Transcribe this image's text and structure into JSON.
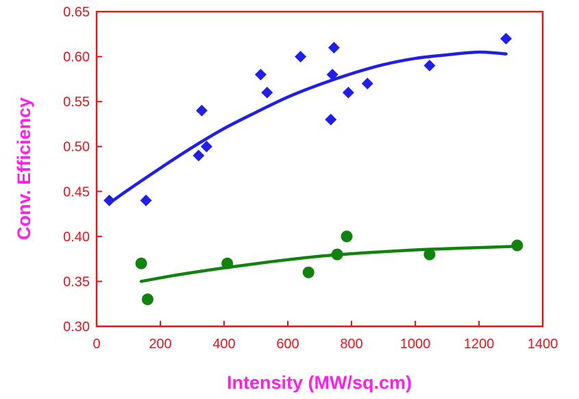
{
  "chart_data": {
    "type": "scatter",
    "title": "",
    "xlabel": "Intensity (MW/sq.cm)",
    "ylabel": "Conv. Efficiency",
    "xlim": [
      0,
      1400
    ],
    "ylim": [
      0.3,
      0.65
    ],
    "x_ticks": [
      "0",
      "200",
      "400",
      "600",
      "800",
      "1000",
      "1200",
      "1400"
    ],
    "y_ticks": [
      "0.30",
      "0.35",
      "0.40",
      "0.45",
      "0.50",
      "0.55",
      "0.60",
      "0.65"
    ],
    "grid": false,
    "legend": "none",
    "colors": {
      "axis": "#e8141c",
      "label": "#ff20e8",
      "series_a": "#1f1fe6",
      "series_b": "#12820f"
    },
    "series": [
      {
        "marker": "diamond",
        "color": "#1f1fe6",
        "points": [
          [
            40,
            0.44
          ],
          [
            155,
            0.44
          ],
          [
            320,
            0.49
          ],
          [
            330,
            0.54
          ],
          [
            345,
            0.5
          ],
          [
            515,
            0.58
          ],
          [
            535,
            0.56
          ],
          [
            640,
            0.6
          ],
          [
            735,
            0.53
          ],
          [
            740,
            0.58
          ],
          [
            745,
            0.61
          ],
          [
            790,
            0.56
          ],
          [
            850,
            0.57
          ],
          [
            1045,
            0.59
          ],
          [
            1285,
            0.62
          ]
        ],
        "trendline": {
          "x": [
            40,
            100,
            200,
            300,
            400,
            500,
            600,
            700,
            800,
            900,
            1000,
            1100,
            1200,
            1285
          ],
          "y": [
            0.437,
            0.452,
            0.476,
            0.499,
            0.52,
            0.538,
            0.555,
            0.569,
            0.581,
            0.591,
            0.598,
            0.602,
            0.605,
            0.603
          ]
        }
      },
      {
        "marker": "circle",
        "color": "#12820f",
        "points": [
          [
            140,
            0.37
          ],
          [
            160,
            0.33
          ],
          [
            410,
            0.37
          ],
          [
            665,
            0.36
          ],
          [
            755,
            0.38
          ],
          [
            785,
            0.4
          ],
          [
            1045,
            0.38
          ],
          [
            1320,
            0.39
          ]
        ],
        "trendline": {
          "x": [
            140,
            250,
            400,
            550,
            700,
            850,
            1000,
            1150,
            1320
          ],
          "y": [
            0.35,
            0.357,
            0.365,
            0.372,
            0.378,
            0.382,
            0.385,
            0.387,
            0.389
          ]
        }
      }
    ]
  }
}
